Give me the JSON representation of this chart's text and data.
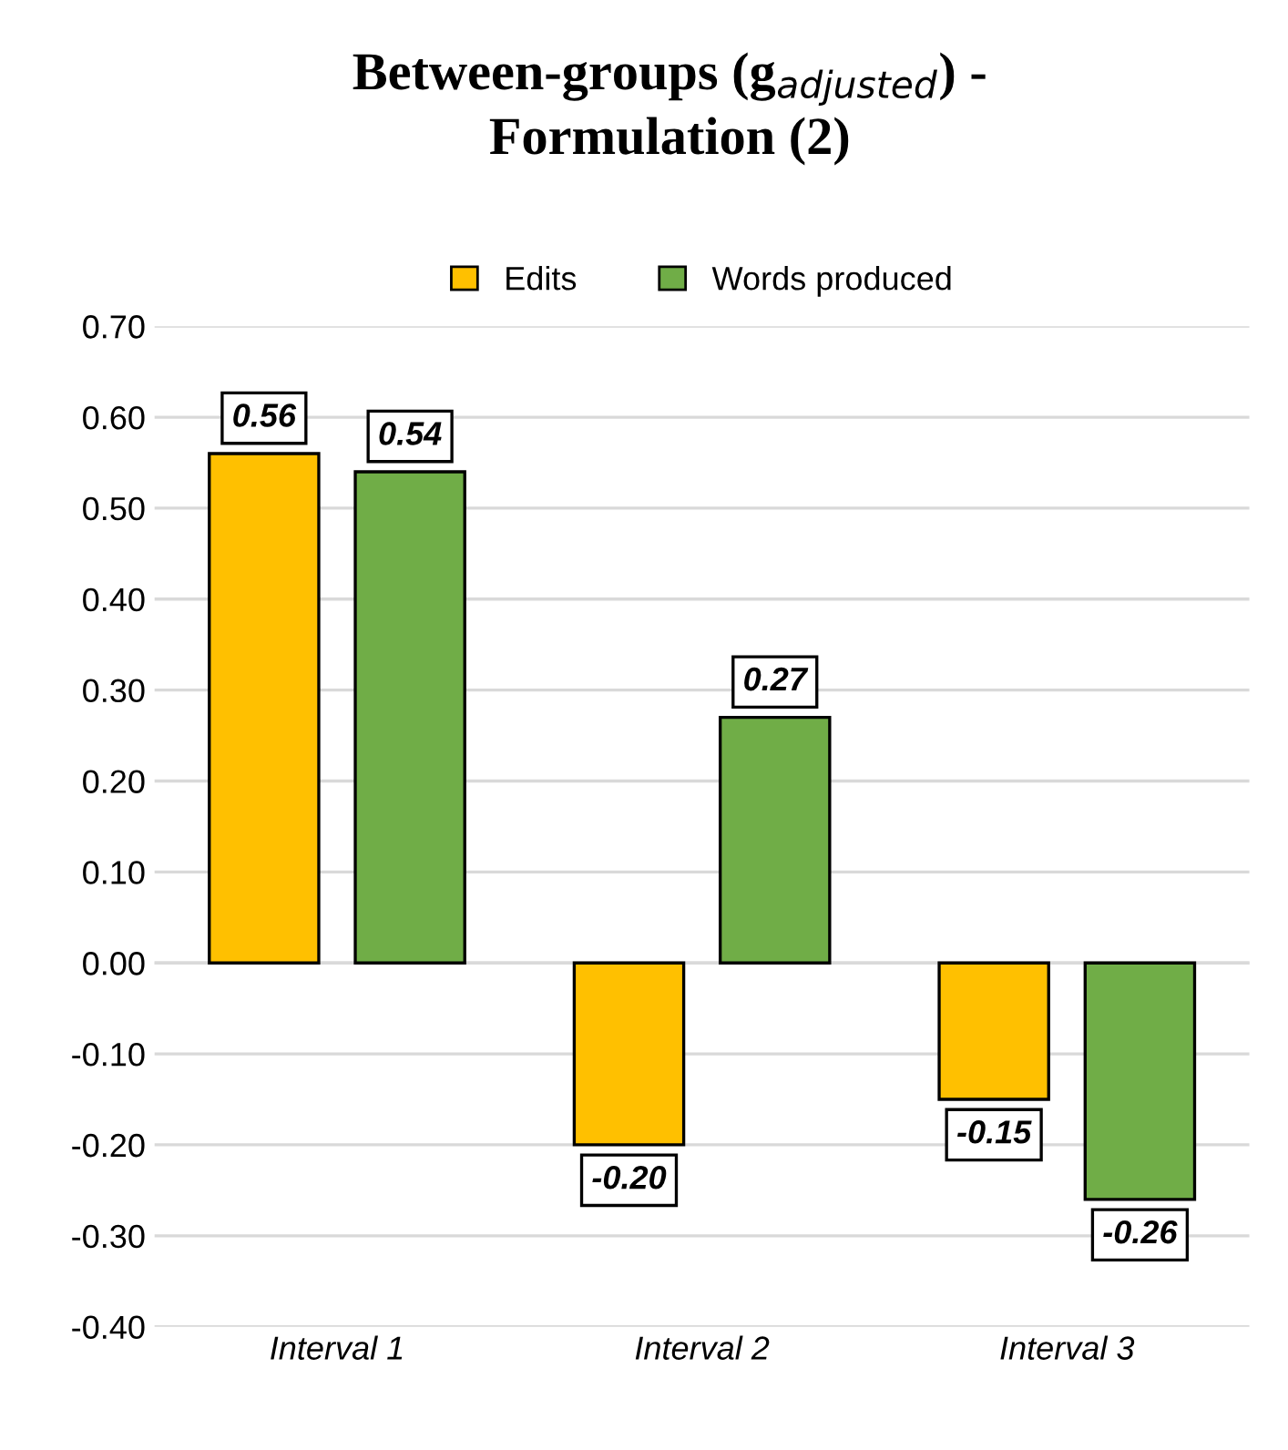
{
  "chart_data": {
    "type": "bar",
    "title": "Between-groups (g$_{adjusted}$) -\nFormulation (2)",
    "categories": [
      "Interval 1",
      "Interval 2",
      "Interval 3"
    ],
    "series": [
      {
        "name": "Edits",
        "color": "#ffc000",
        "values": [
          0.56,
          -0.2,
          -0.15
        ],
        "value_labels": [
          "0.56",
          "-0.20",
          "-0.15"
        ]
      },
      {
        "name": "Words produced",
        "color": "#70ad47",
        "values": [
          0.54,
          0.27,
          -0.26
        ],
        "value_labels": [
          "0.54",
          "0.27",
          "-0.26"
        ]
      }
    ],
    "ylim": [
      -0.4,
      0.7
    ],
    "yticks": [
      {
        "value": -0.4,
        "label": "-0.40"
      },
      {
        "value": -0.3,
        "label": "-0.30"
      },
      {
        "value": -0.2,
        "label": "-0.20"
      },
      {
        "value": -0.1,
        "label": "-0.10"
      },
      {
        "value": 0,
        "label": "0.00"
      },
      {
        "value": 0.1,
        "label": "0.10"
      },
      {
        "value": 0.2,
        "label": "0.20"
      },
      {
        "value": 0.3,
        "label": "0.30"
      },
      {
        "value": 0.4,
        "label": "0.40"
      },
      {
        "value": 0.5,
        "label": "0.50"
      },
      {
        "value": 0.6,
        "label": "0.60"
      },
      {
        "value": 0.7,
        "label": "0.70"
      }
    ],
    "grid": "y",
    "legend": "top"
  }
}
